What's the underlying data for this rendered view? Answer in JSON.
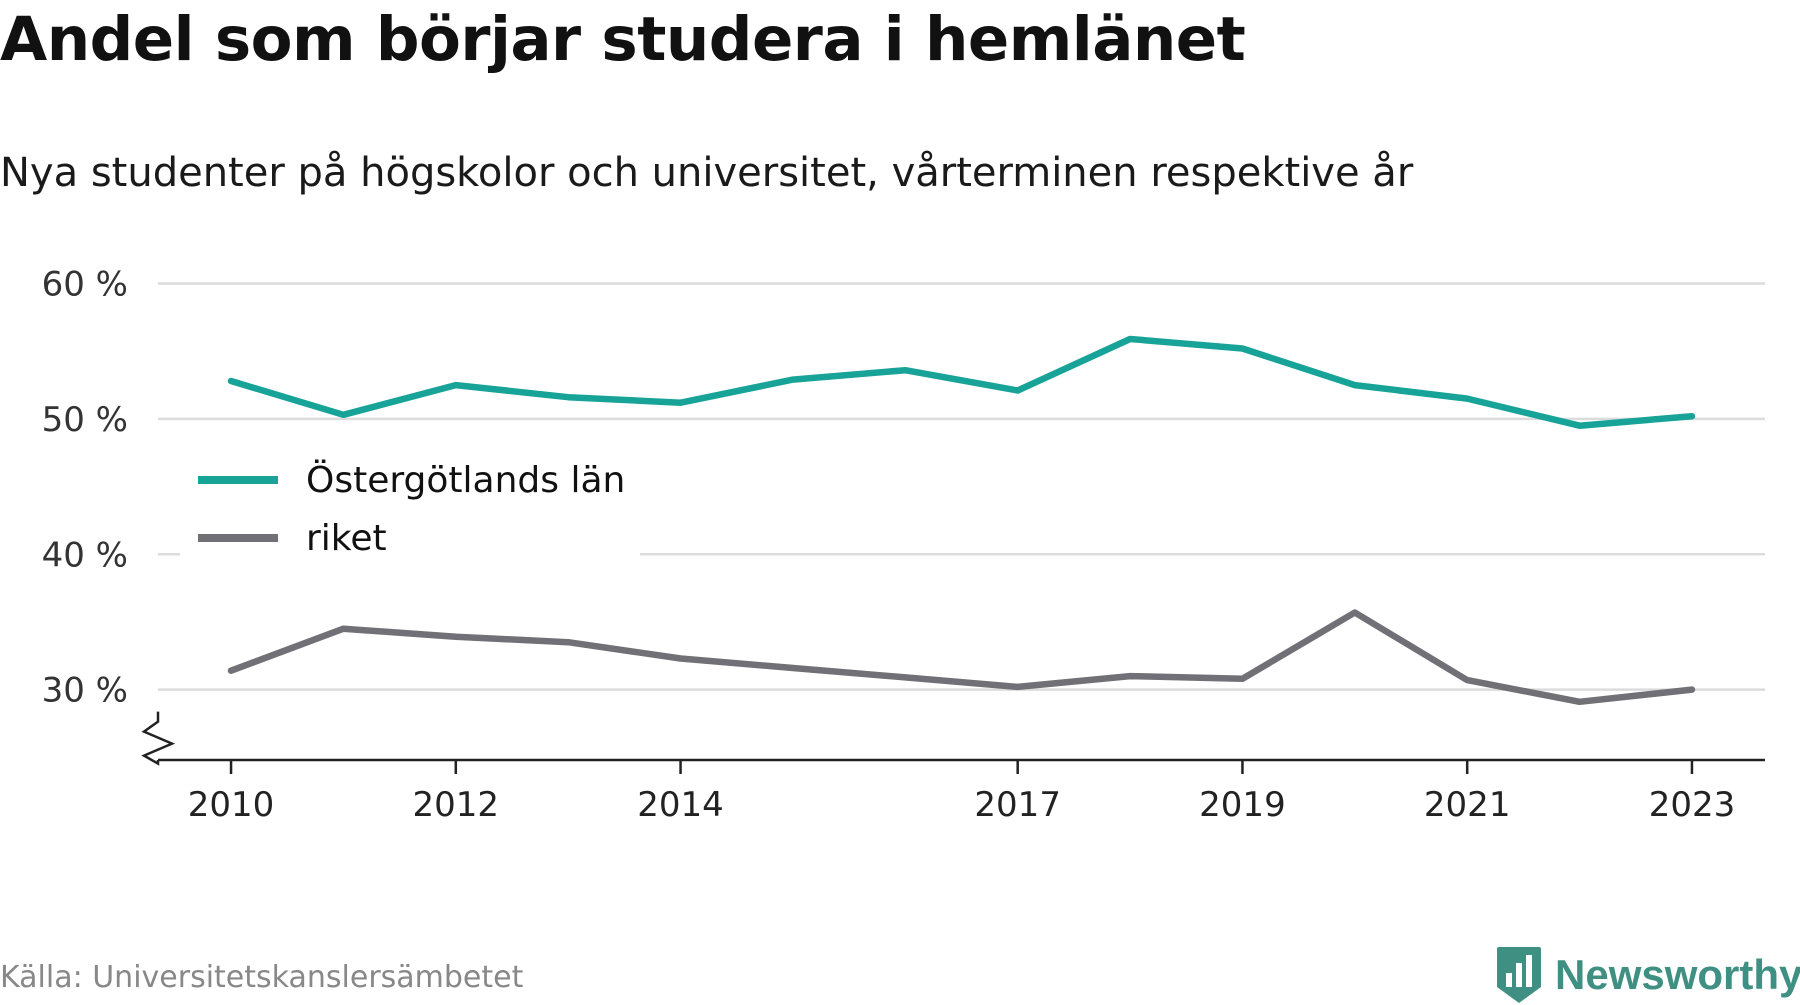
{
  "header": {
    "title": "Andel som börjar studera i hemlänet",
    "subtitle": "Nya studenter på högskolor och universitet, vårterminen respektive år"
  },
  "footer": {
    "source": "Källa: Universitetskanslersämbetet",
    "brand": "Newsworthy",
    "brand_icon": "bar-chart-badge-icon",
    "brand_color": "#3f8f83"
  },
  "chart_data": {
    "type": "line",
    "x": [
      2010,
      2011,
      2012,
      2013,
      2014,
      2015,
      2016,
      2017,
      2018,
      2019,
      2020,
      2021,
      2022,
      2023
    ],
    "xticks": [
      2010,
      2012,
      2014,
      2017,
      2019,
      2021,
      2023
    ],
    "yticks": [
      30,
      40,
      50,
      60
    ],
    "ytick_suffix": " %",
    "ylim": [
      24.8,
      61
    ],
    "xlim": [
      2009.35,
      2023.65
    ],
    "axis_break": true,
    "grid": true,
    "legend_position": "left",
    "series": [
      {
        "name": "Östergötlands län",
        "color": "#17a398",
        "values": [
          52.8,
          50.3,
          52.5,
          51.6,
          51.2,
          52.9,
          53.6,
          52.1,
          55.9,
          55.2,
          52.5,
          51.5,
          49.5,
          50.2
        ]
      },
      {
        "name": "riket",
        "color": "#707076",
        "values": [
          31.4,
          34.5,
          33.9,
          33.5,
          32.3,
          31.6,
          30.9,
          30.2,
          31.0,
          30.8,
          35.7,
          30.7,
          29.1,
          30.0
        ]
      }
    ]
  }
}
